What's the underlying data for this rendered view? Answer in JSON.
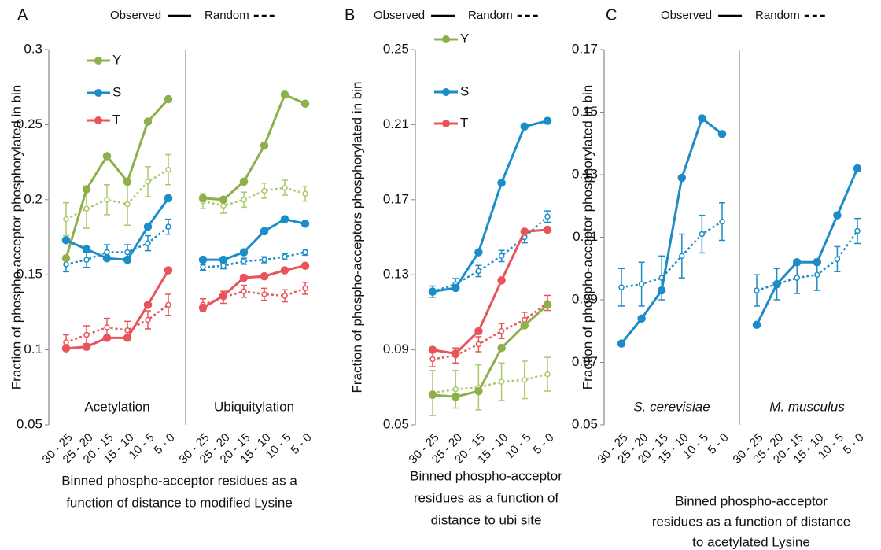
{
  "chart_data": [
    {
      "type": "line",
      "panel": "A",
      "ylabel": "Fraction of phospho-acceptor phosphorylated in bin",
      "xlabel": [
        "Binned phospho-acceptor residues as a",
        "function of distance to modified Lysine"
      ],
      "legend": {
        "observed": "Observed",
        "random": "Random"
      },
      "ylim": [
        0.05,
        0.3
      ],
      "yticks": [
        0.05,
        0.1,
        0.15,
        0.2,
        0.25,
        0.3
      ],
      "categories": [
        "30 - 25",
        "25 - 20",
        "20 - 15",
        "15 - 10",
        "10 - 5",
        "5 - 0"
      ],
      "subplots": [
        {
          "label": "Acetylation",
          "series": [
            {
              "name": "Y",
              "color": "#8db04a",
              "style": "solid",
              "values": [
                0.161,
                0.207,
                0.229,
                0.212,
                0.252,
                0.267
              ]
            },
            {
              "name": "S",
              "color": "#1b8dc9",
              "style": "solid",
              "values": [
                0.173,
                0.167,
                0.161,
                0.16,
                0.182,
                0.201
              ]
            },
            {
              "name": "T",
              "color": "#e8545a",
              "style": "solid",
              "values": [
                0.101,
                0.102,
                0.108,
                0.108,
                0.13,
                0.153
              ]
            },
            {
              "color": "#a9c96c",
              "style": "dashed",
              "values": [
                0.187,
                0.194,
                0.2,
                0.197,
                0.212,
                0.22
              ],
              "errors": [
                0.011,
                0.013,
                0.01,
                0.014,
                0.01,
                0.01
              ]
            },
            {
              "color": "#1b8dc9",
              "style": "dashed",
              "values": [
                0.157,
                0.16,
                0.165,
                0.165,
                0.171,
                0.182
              ],
              "errors": [
                0.005,
                0.005,
                0.005,
                0.005,
                0.005,
                0.005
              ]
            },
            {
              "color": "#e8545a",
              "style": "dashed",
              "values": [
                0.105,
                0.11,
                0.115,
                0.113,
                0.12,
                0.13
              ],
              "errors": [
                0.005,
                0.006,
                0.006,
                0.006,
                0.006,
                0.007
              ]
            }
          ]
        },
        {
          "label": "Ubiquitylation",
          "series": [
            {
              "color": "#8db04a",
              "style": "solid",
              "values": [
                0.201,
                0.2,
                0.212,
                0.236,
                0.27,
                0.264
              ]
            },
            {
              "color": "#1b8dc9",
              "style": "solid",
              "values": [
                0.16,
                0.16,
                0.165,
                0.179,
                0.187,
                0.184
              ]
            },
            {
              "color": "#e8545a",
              "style": "solid",
              "values": [
                0.128,
                0.136,
                0.148,
                0.149,
                0.153,
                0.156
              ]
            },
            {
              "color": "#a9c96c",
              "style": "dashed",
              "values": [
                0.199,
                0.196,
                0.2,
                0.206,
                0.208,
                0.204
              ],
              "errors": [
                0.005,
                0.005,
                0.005,
                0.005,
                0.005,
                0.005
              ]
            },
            {
              "color": "#1b8dc9",
              "style": "dashed",
              "values": [
                0.155,
                0.156,
                0.159,
                0.16,
                0.162,
                0.165
              ],
              "errors": [
                0.002,
                0.002,
                0.002,
                0.002,
                0.002,
                0.002
              ]
            },
            {
              "color": "#e8545a",
              "style": "dashed",
              "values": [
                0.13,
                0.135,
                0.139,
                0.137,
                0.136,
                0.141
              ],
              "errors": [
                0.004,
                0.004,
                0.004,
                0.004,
                0.004,
                0.004
              ]
            }
          ]
        }
      ]
    },
    {
      "type": "line",
      "panel": "B",
      "ylabel": "Fraction of phospho-acceptors phosphorylated in bin",
      "xlabel": [
        "Binned phospho-acceptor",
        "residues  as a function of",
        "distance to ubi site"
      ],
      "legend": {
        "observed": "Observed",
        "random": "Random"
      },
      "ylim": [
        0.05,
        0.25
      ],
      "yticks": [
        0.05,
        0.09,
        0.13,
        0.17,
        0.21,
        0.25
      ],
      "categories": [
        "30 - 25",
        "25 - 20",
        "20 - 15",
        "15 - 10",
        "10 - 5",
        "5 - 0"
      ],
      "subplots": [
        {
          "series": [
            {
              "name": "Y",
              "color": "#8db04a",
              "style": "solid",
              "values": [
                0.066,
                0.065,
                0.068,
                0.091,
                0.103,
                0.114
              ]
            },
            {
              "name": "S",
              "color": "#1b8dc9",
              "style": "solid",
              "values": [
                0.121,
                0.123,
                0.142,
                0.179,
                0.209,
                0.212
              ]
            },
            {
              "name": "T",
              "color": "#e8545a",
              "style": "solid",
              "values": [
                0.09,
                0.088,
                0.1,
                0.127,
                0.153,
                0.154
              ]
            },
            {
              "color": "#a9c96c",
              "style": "dashed",
              "values": [
                0.067,
                0.069,
                0.07,
                0.073,
                0.074,
                0.077
              ],
              "errors": [
                0.012,
                0.01,
                0.012,
                0.01,
                0.01,
                0.009
              ]
            },
            {
              "color": "#1b8dc9",
              "style": "dashed",
              "values": [
                0.121,
                0.125,
                0.132,
                0.14,
                0.15,
                0.161
              ],
              "errors": [
                0.003,
                0.003,
                0.003,
                0.003,
                0.003,
                0.003
              ]
            },
            {
              "color": "#e8545a",
              "style": "dashed",
              "values": [
                0.085,
                0.087,
                0.093,
                0.1,
                0.106,
                0.115
              ],
              "errors": [
                0.004,
                0.004,
                0.004,
                0.004,
                0.004,
                0.004
              ]
            }
          ]
        }
      ]
    },
    {
      "type": "line",
      "panel": "C",
      "ylabel": "Fraction of phospho-acceptor phosphorylated in bin",
      "xlabel": [
        "Binned phospho-acceptor",
        "residues as a function of distance",
        "to acetylated Lysine"
      ],
      "legend": {
        "observed": "Observed",
        "random": "Random"
      },
      "ylim": [
        0.05,
        0.17
      ],
      "yticks": [
        0.05,
        0.07,
        0.09,
        0.11,
        0.13,
        0.15,
        0.17
      ],
      "categories": [
        "30 - 25",
        "25 - 20",
        "20 - 15",
        "15 - 10",
        "10 - 5",
        "5 - 0"
      ],
      "subplots": [
        {
          "label": "S. cerevisiae",
          "series": [
            {
              "color": "#1d8cc6",
              "style": "solid",
              "values": [
                0.076,
                0.084,
                0.093,
                0.129,
                0.148,
                0.143
              ]
            },
            {
              "color": "#1d8cc6",
              "style": "dashed",
              "values": [
                0.094,
                0.095,
                0.097,
                0.104,
                0.111,
                0.115
              ],
              "errors": [
                0.006,
                0.007,
                0.007,
                0.007,
                0.006,
                0.006
              ]
            }
          ]
        },
        {
          "label": "M. musculus",
          "series": [
            {
              "color": "#1d8cc6",
              "style": "solid",
              "values": [
                0.082,
                0.095,
                0.102,
                0.102,
                0.117,
                0.132
              ]
            },
            {
              "color": "#1d8cc6",
              "style": "dashed",
              "values": [
                0.093,
                0.095,
                0.097,
                0.098,
                0.103,
                0.112
              ],
              "errors": [
                0.005,
                0.005,
                0.005,
                0.005,
                0.004,
                0.004
              ]
            }
          ]
        }
      ]
    }
  ]
}
